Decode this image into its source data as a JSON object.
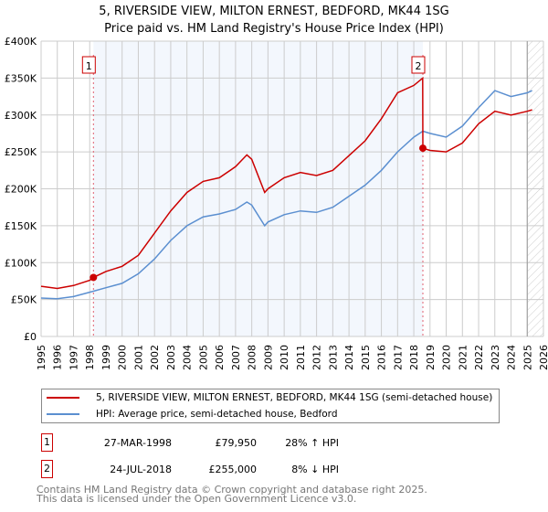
{
  "chart_data": {
    "type": "line",
    "title": "5, RIVERSIDE VIEW, MILTON ERNEST, BEDFORD, MK44 1SG",
    "subtitle": "Price paid vs. HM Land Registry's House Price Index (HPI)",
    "xlim": [
      1995,
      2026
    ],
    "ylim": [
      0,
      400000
    ],
    "x_ticks": [
      "1995",
      "1996",
      "1997",
      "1998",
      "1999",
      "2000",
      "2001",
      "2002",
      "2003",
      "2004",
      "2005",
      "2006",
      "2007",
      "2008",
      "2009",
      "2010",
      "2011",
      "2012",
      "2013",
      "2014",
      "2015",
      "2016",
      "2017",
      "2018",
      "2019",
      "2020",
      "2021",
      "2022",
      "2023",
      "2024",
      "2025",
      "2026"
    ],
    "y_ticks": [
      {
        "v": 0,
        "label": "£0"
      },
      {
        "v": 50000,
        "label": "£50K"
      },
      {
        "v": 100000,
        "label": "£100K"
      },
      {
        "v": 150000,
        "label": "£150K"
      },
      {
        "v": 200000,
        "label": "£200K"
      },
      {
        "v": 250000,
        "label": "£250K"
      },
      {
        "v": 300000,
        "label": "£300K"
      },
      {
        "v": 350000,
        "label": "£350K"
      },
      {
        "v": 400000,
        "label": "£400K"
      }
    ],
    "grid": true,
    "series": [
      {
        "name": "5, RIVERSIDE VIEW, MILTON ERNEST, BEDFORD, MK44 1SG (semi-detached house)",
        "color": "#cc0000",
        "x": [
          1995,
          1996,
          1997,
          1998,
          1998.23,
          1999,
          2000,
          2001,
          2002,
          2003,
          2004,
          2005,
          2006,
          2007,
          2007.7,
          2008,
          2008.8,
          2009,
          2010,
          2011,
          2012,
          2013,
          2014,
          2015,
          2016,
          2017,
          2018,
          2018.55,
          2018.56,
          2019,
          2020,
          2021,
          2022,
          2023,
          2024,
          2025,
          2025.3
        ],
        "y": [
          68000,
          65000,
          69000,
          76000,
          79950,
          88000,
          95000,
          110000,
          140000,
          170000,
          195000,
          210000,
          215000,
          230000,
          246000,
          240000,
          195000,
          200000,
          215000,
          222000,
          218000,
          225000,
          245000,
          265000,
          295000,
          330000,
          340000,
          350000,
          255000,
          252000,
          250000,
          262000,
          288000,
          305000,
          300000,
          305000,
          307000
        ]
      },
      {
        "name": "HPI: Average price, semi-detached house, Bedford",
        "color": "#5b8fd0",
        "x": [
          1995,
          1996,
          1997,
          1998,
          1999,
          2000,
          2001,
          2002,
          2003,
          2004,
          2005,
          2006,
          2007,
          2007.7,
          2008,
          2008.8,
          2009,
          2010,
          2011,
          2012,
          2013,
          2014,
          2015,
          2016,
          2017,
          2018,
          2018.56,
          2019,
          2020,
          2021,
          2022,
          2023,
          2024,
          2025,
          2025.3
        ],
        "y": [
          52000,
          51000,
          54000,
          60000,
          66000,
          72000,
          85000,
          105000,
          130000,
          150000,
          162000,
          166000,
          172000,
          182000,
          178000,
          150000,
          155000,
          165000,
          170000,
          168000,
          175000,
          190000,
          205000,
          225000,
          250000,
          270000,
          278000,
          275000,
          270000,
          285000,
          310000,
          333000,
          325000,
          330000,
          333000
        ]
      }
    ],
    "sales": [
      {
        "id": "1",
        "x": 1998.23,
        "y": 79950,
        "date": "27-MAR-1998",
        "price": "£79,950",
        "hpi": "28% ↑ HPI"
      },
      {
        "id": "2",
        "x": 2018.56,
        "y": 255000,
        "date": "24-JUL-2018",
        "price": "£255,000",
        "hpi": "8% ↓ HPI"
      }
    ],
    "shaded_range": [
      1998.23,
      2018.56
    ],
    "hatched_from": 2025.0
  },
  "footer": {
    "line1": "Contains HM Land Registry data © Crown copyright and database right 2025.",
    "line2": "This data is licensed under the Open Government Licence v3.0."
  }
}
